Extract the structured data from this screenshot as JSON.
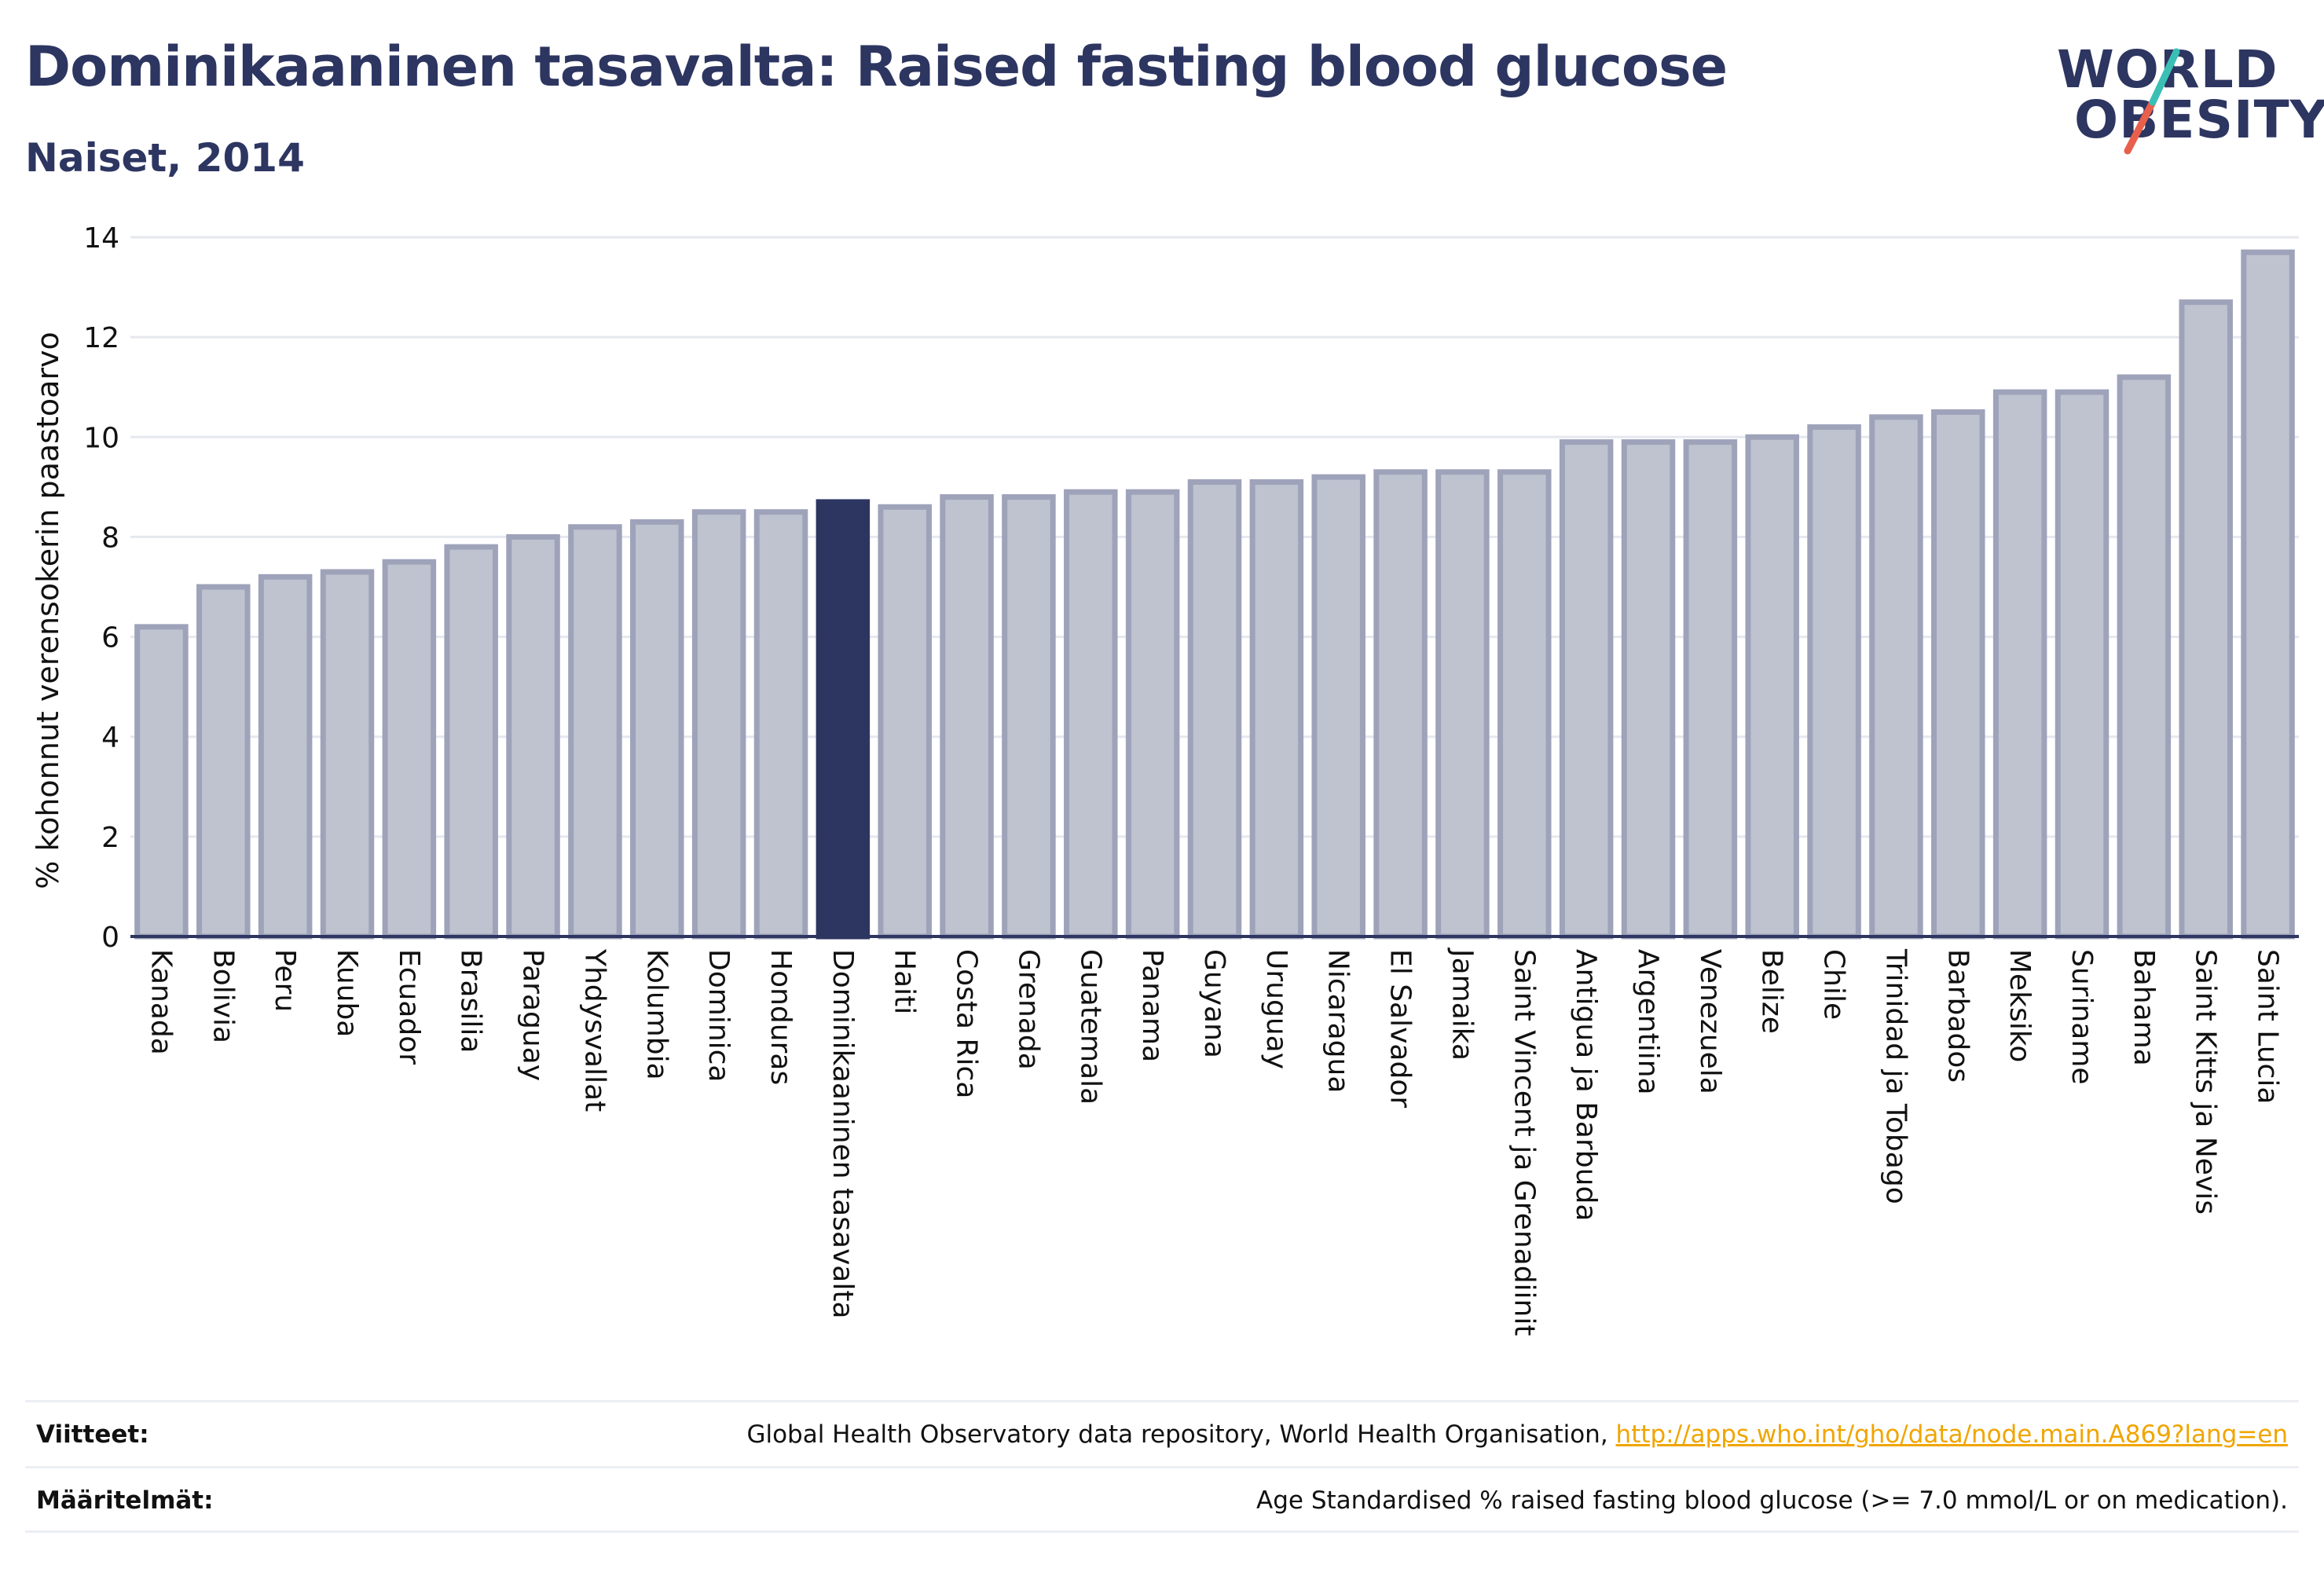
{
  "header": {
    "title": "Dominikaaninen tasavalta: Raised fasting blood glucose",
    "subtitle": "Naiset, 2014"
  },
  "logo": {
    "line1": "WORLD",
    "line2": "OBESITY",
    "colors": {
      "text": "#2d3561",
      "slash_top": "#3bbfb5",
      "slash_bottom": "#e8604c"
    }
  },
  "colors": {
    "bar_fill": "#bfc2cf",
    "bar_stroke": "#9ea3ba",
    "highlight": "#2d3561",
    "grid": "#e6e8ef",
    "axis": "#2d3561"
  },
  "chart_data": {
    "type": "bar",
    "title": "Dominikaaninen tasavalta: Raised fasting blood glucose",
    "subtitle": "Naiset, 2014",
    "xlabel": "",
    "ylabel": "% kohonnut verensokerin paastoarvo",
    "ylim": [
      0,
      14
    ],
    "yticks": [
      0,
      2,
      4,
      6,
      8,
      10,
      12,
      14
    ],
    "grid": true,
    "highlight_category": "Dominikaaninen tasavalta",
    "categories": [
      "Kanada",
      "Bolivia",
      "Peru",
      "Kuuba",
      "Ecuador",
      "Brasilia",
      "Paraguay",
      "Yhdysvallat",
      "Kolumbia",
      "Dominica",
      "Honduras",
      "Dominikaaninen tasavalta",
      "Haiti",
      "Costa Rica",
      "Grenada",
      "Guatemala",
      "Panama",
      "Guyana",
      "Uruguay",
      "Nicaragua",
      "El Salvador",
      "Jamaika",
      "Saint Vincent ja Grenadiinit",
      "Antigua ja Barbuda",
      "Argentiina",
      "Venezuela",
      "Belize",
      "Chile",
      "Trinidad ja Tobago",
      "Barbados",
      "Meksiko",
      "Suriname",
      "Bahama",
      "Saint Kitts ja Nevis",
      "Saint Lucia"
    ],
    "values": [
      6.2,
      7.0,
      7.2,
      7.3,
      7.5,
      7.8,
      8.0,
      8.2,
      8.3,
      8.5,
      8.5,
      8.7,
      8.6,
      8.8,
      8.8,
      8.9,
      8.9,
      9.1,
      9.1,
      9.2,
      9.3,
      9.3,
      9.3,
      9.9,
      9.9,
      9.9,
      10.0,
      10.2,
      10.4,
      10.5,
      10.9,
      10.9,
      11.2,
      12.7,
      13.7
    ]
  },
  "footer": {
    "sources_label": "Viitteet:",
    "sources_text": "Global Health Observatory data repository, World Health Organisation, ",
    "sources_link": "http://apps.who.int/gho/data/node.main.A869?lang=en",
    "definitions_label": "Määritelmät:",
    "definitions_text": "Age Standardised % raised fasting blood glucose (>= 7.0 mmol/L or on medication)."
  }
}
